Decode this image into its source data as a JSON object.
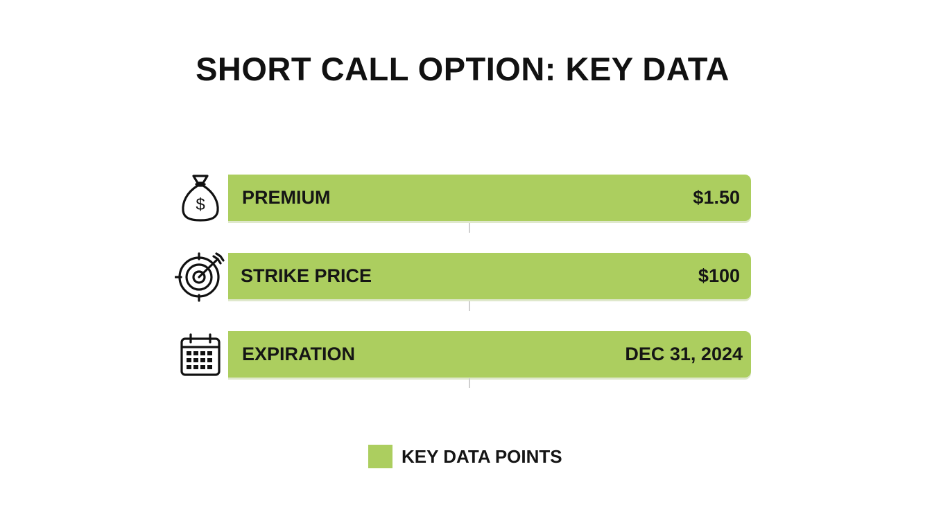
{
  "title": "SHORT CALL OPTION: KEY DATA",
  "colors": {
    "bar": "#acce5f",
    "text": "#151515"
  },
  "rows": [
    {
      "icon": "money-bag-icon",
      "label": "PREMIUM",
      "value": "$1.50"
    },
    {
      "icon": "target-icon",
      "label": "STRIKE PRICE",
      "value": "$100"
    },
    {
      "icon": "calendar-icon",
      "label": "EXPIRATION",
      "value": "DEC 31, 2024"
    }
  ],
  "legend": {
    "label": "KEY DATA POINTS"
  }
}
